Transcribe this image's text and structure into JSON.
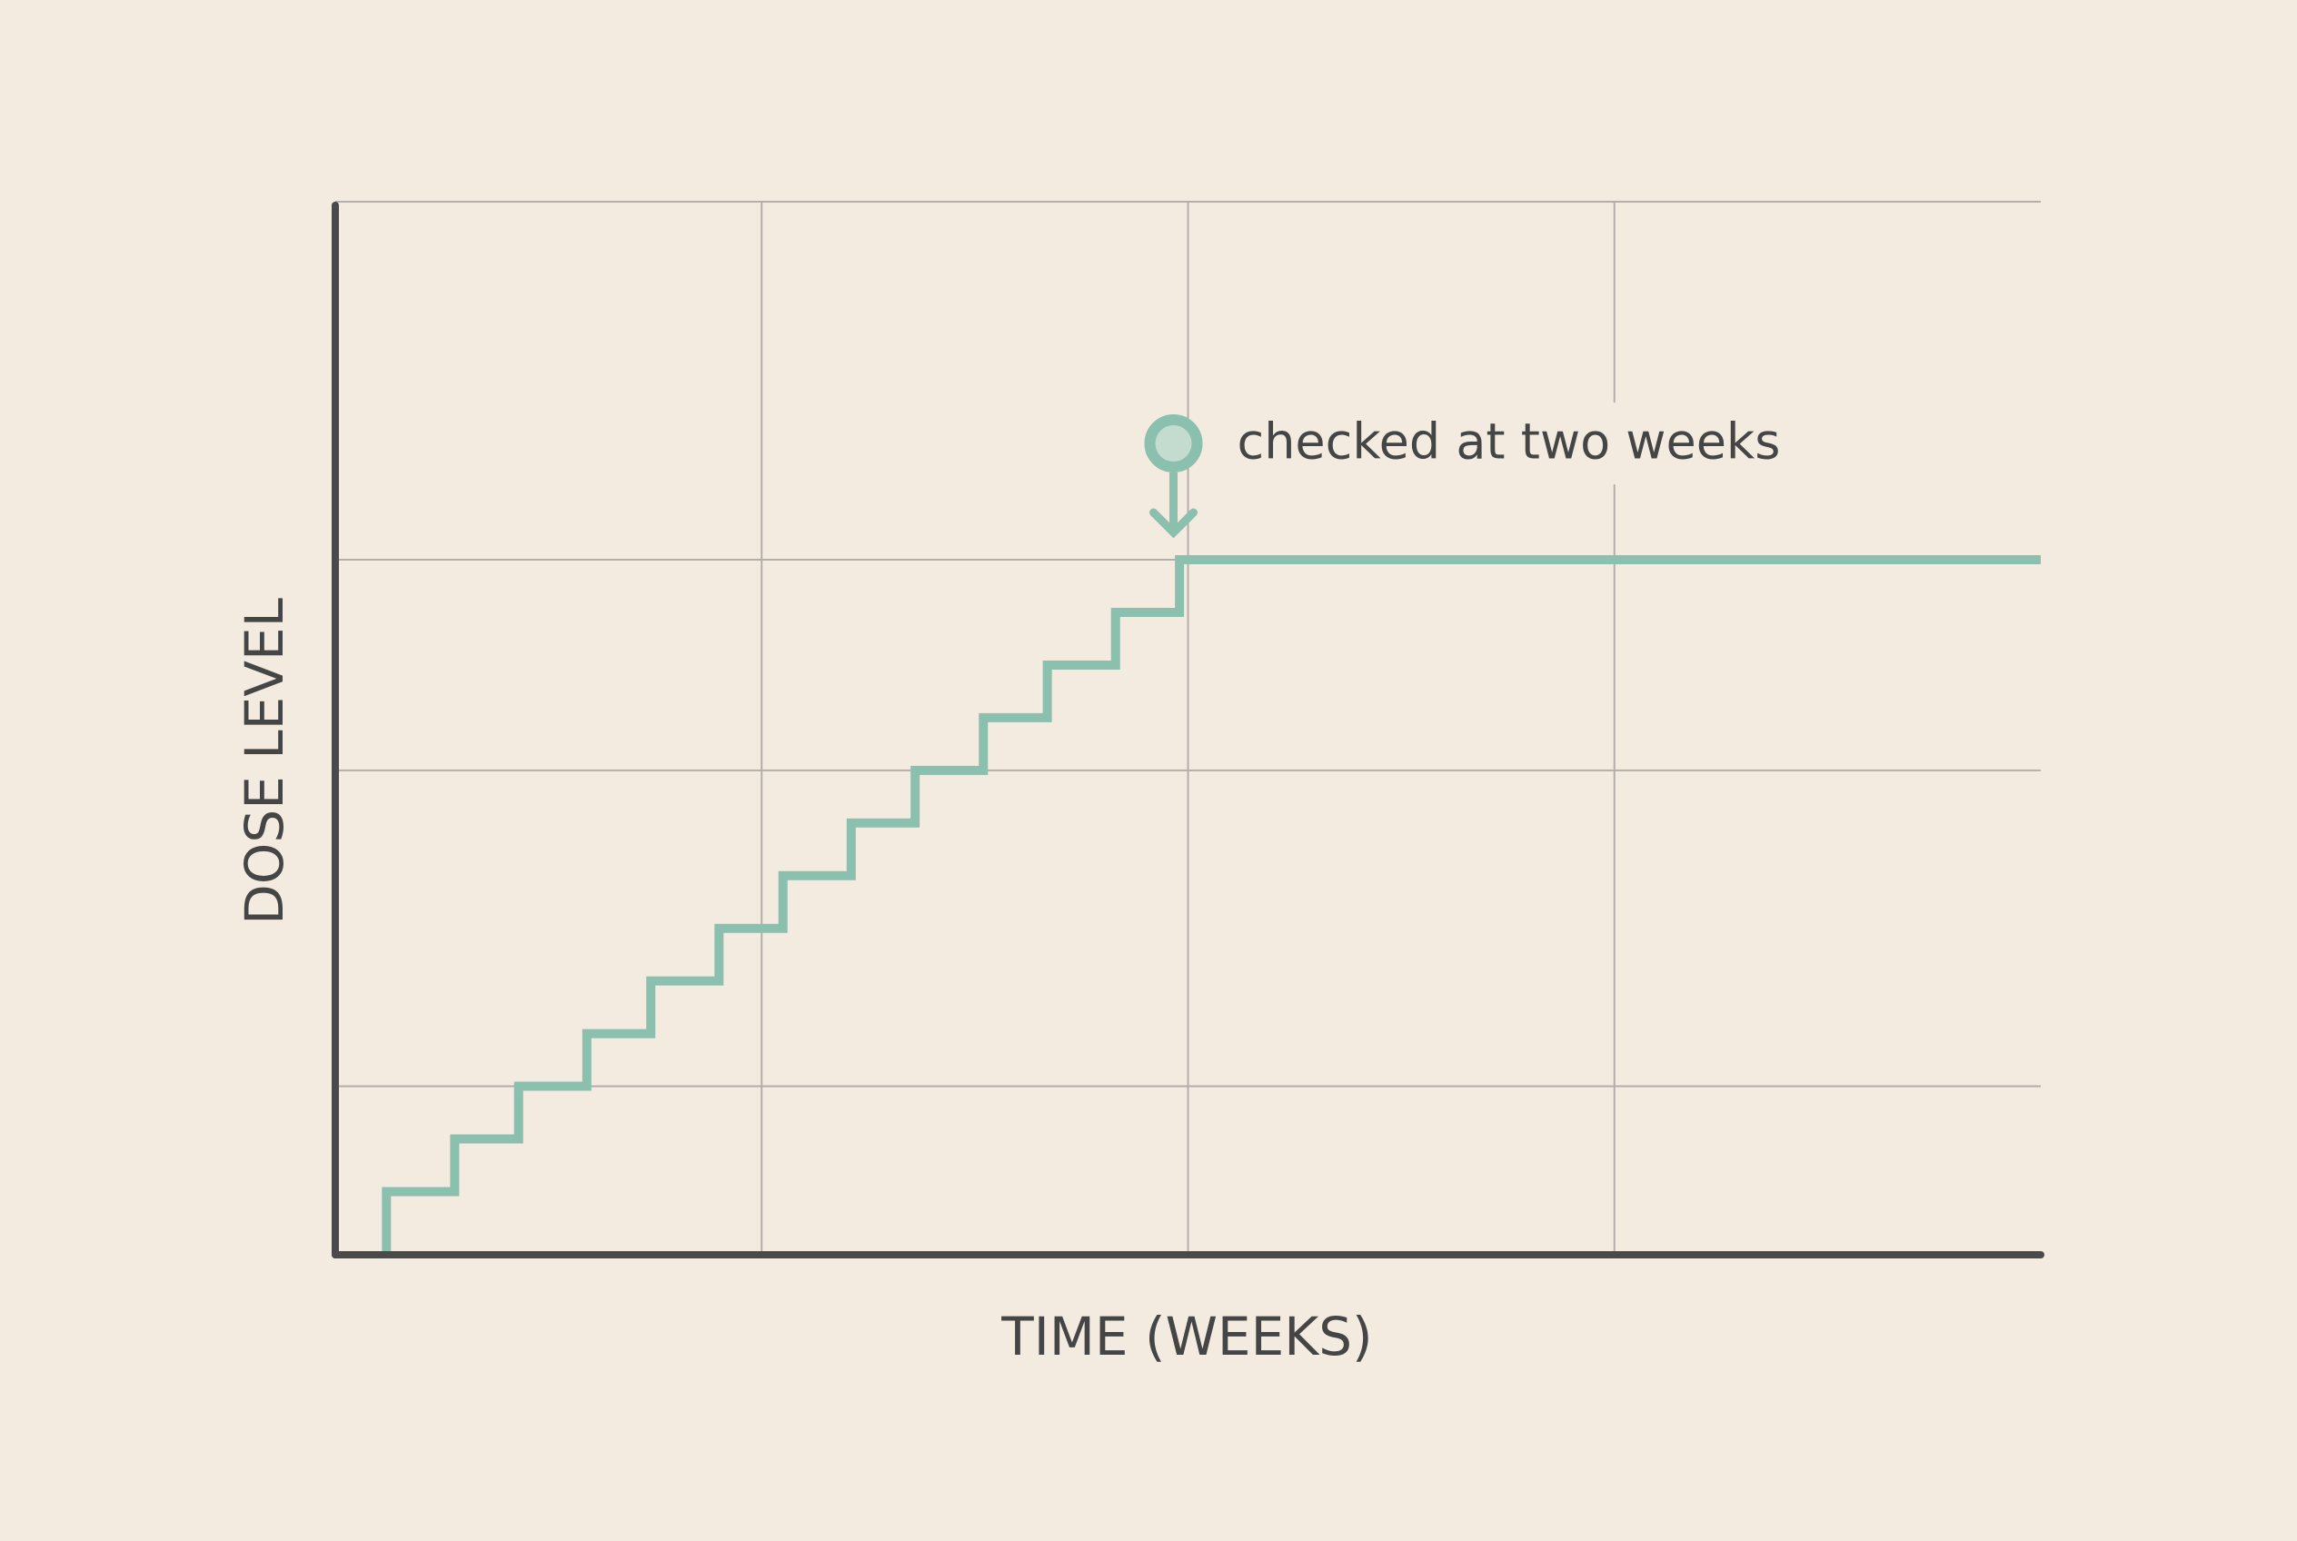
{
  "chart_data": {
    "type": "step",
    "x_label": "TIME (WEEKS)",
    "y_label": "DOSE LEVEL",
    "x": [
      0.12,
      0.28,
      0.43,
      0.59,
      0.74,
      0.9,
      1.05,
      1.21,
      1.36,
      1.52,
      1.67,
      1.83,
      1.98,
      4
    ],
    "values": [
      6,
      11,
      16,
      21,
      26,
      31,
      36,
      41,
      46,
      51,
      56,
      61,
      66,
      66
    ],
    "color": "#8bbfae",
    "xlim": [
      0,
      4
    ],
    "ylim": [
      0,
      100
    ],
    "xticks": [
      1,
      2,
      3
    ],
    "yticks": [
      16,
      46,
      66,
      100
    ],
    "grid": true,
    "annotation": {
      "text": "checked at two weeks",
      "x": 2,
      "y": 66
    }
  }
}
